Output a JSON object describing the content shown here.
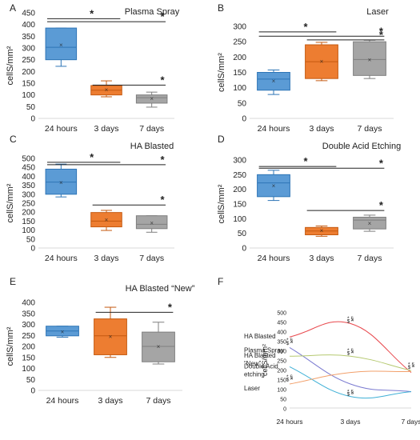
{
  "figure": {
    "panel_letters": [
      "A",
      "B",
      "C",
      "D",
      "E",
      "F"
    ]
  },
  "colors": {
    "blue": "#5b9bd5",
    "blue_edge": "#2e75b6",
    "orange": "#ed7d31",
    "orange_edge": "#c55a11",
    "gray": "#a5a5a5",
    "gray_edge": "#7f7f7f",
    "axis": "#d9d9d9",
    "sig": "#222222"
  },
  "chart_data": [
    {
      "type": "box",
      "panel": "A",
      "title": "Plasma Spray",
      "ylabel": "cellS/mm²",
      "categories": [
        "24 hours",
        "3 days",
        "7 days"
      ],
      "ylim": [
        0,
        450
      ],
      "yticks": [
        0,
        50,
        100,
        150,
        200,
        250,
        300,
        350,
        400,
        450
      ],
      "boxes": [
        {
          "min": 222,
          "q1": 250,
          "median": 303,
          "q3": 385,
          "max": 385,
          "mean": 314
        },
        {
          "min": 92,
          "q1": 100,
          "median": 120,
          "q3": 140,
          "max": 160,
          "mean": 123
        },
        {
          "min": 48,
          "q1": 65,
          "median": 88,
          "q3": 100,
          "max": 112,
          "mean": 85
        }
      ],
      "significance": [
        {
          "from": 0,
          "to": 1,
          "label": "*",
          "y": 425
        },
        {
          "from": 0,
          "to": 2,
          "label": "*",
          "y": 412
        },
        {
          "from": 1,
          "to": 2,
          "label": "*",
          "y": 142
        }
      ]
    },
    {
      "type": "box",
      "panel": "B",
      "title": "Laser",
      "ylabel": "cellS/mm²",
      "categories": [
        "24 hours",
        "3 days",
        "7 days"
      ],
      "ylim": [
        0,
        300
      ],
      "yticks": [
        0,
        50,
        100,
        150,
        200,
        250,
        300
      ],
      "boxes": [
        {
          "min": 78,
          "q1": 92,
          "median": 128,
          "q3": 150,
          "max": 158,
          "mean": 122
        },
        {
          "min": 123,
          "q1": 130,
          "median": 185,
          "q3": 240,
          "max": 248,
          "mean": 186
        },
        {
          "min": 130,
          "q1": 140,
          "median": 192,
          "q3": 250,
          "max": 255,
          "mean": 192
        }
      ],
      "significance": [
        {
          "from": 0,
          "to": 1,
          "label": "*",
          "y": 282
        },
        {
          "from": 0,
          "to": 2,
          "label": "*",
          "y": 268
        },
        {
          "from": 1,
          "to": 2,
          "label": "*",
          "y": 256
        }
      ]
    },
    {
      "type": "box",
      "panel": "C",
      "title": "HA Blasted",
      "ylabel": "cellS/mm²",
      "categories": [
        "24 hours",
        "3 days",
        "7 days"
      ],
      "ylim": [
        0,
        500
      ],
      "yticks": [
        0,
        50,
        100,
        150,
        200,
        250,
        300,
        350,
        400,
        450,
        500
      ],
      "boxes": [
        {
          "min": 285,
          "q1": 300,
          "median": 368,
          "q3": 440,
          "max": 468,
          "mean": 365
        },
        {
          "min": 98,
          "q1": 118,
          "median": 150,
          "q3": 198,
          "max": 210,
          "mean": 158
        },
        {
          "min": 88,
          "q1": 108,
          "median": 132,
          "q3": 180,
          "max": 180,
          "mean": 140
        }
      ],
      "significance": [
        {
          "from": 0,
          "to": 1,
          "label": "*",
          "y": 478
        },
        {
          "from": 0,
          "to": 2,
          "label": "*",
          "y": 465
        },
        {
          "from": 1,
          "to": 2,
          "label": "*",
          "y": 240
        }
      ]
    },
    {
      "type": "box",
      "panel": "D",
      "title": "Double Acid Etching",
      "ylabel": "cellS/mm²",
      "categories": [
        "24 hours",
        "3 days",
        "7 days"
      ],
      "ylim": [
        0,
        300
      ],
      "yticks": [
        0,
        50,
        100,
        150,
        200,
        250,
        300
      ],
      "boxes": [
        {
          "min": 162,
          "q1": 175,
          "median": 222,
          "q3": 250,
          "max": 265,
          "mean": 213
        },
        {
          "min": 40,
          "q1": 45,
          "median": 58,
          "q3": 70,
          "max": 75,
          "mean": 60
        },
        {
          "min": 57,
          "q1": 65,
          "median": 95,
          "q3": 105,
          "max": 112,
          "mean": 85
        }
      ],
      "significance": [
        {
          "from": 0,
          "to": 1,
          "label": "*",
          "y": 278
        },
        {
          "from": 0,
          "to": 2,
          "label": "*",
          "y": 272
        },
        {
          "from": 1,
          "to": 2,
          "label": "*",
          "y": 128
        }
      ]
    },
    {
      "type": "box",
      "panel": "E",
      "title": "HA Blasted “New”",
      "ylabel": "cellS/mm²",
      "categories": [
        "24 hours",
        "3 days",
        "7 days"
      ],
      "ylim": [
        0,
        400
      ],
      "yticks": [
        0,
        50,
        100,
        150,
        200,
        250,
        300,
        350,
        400
      ],
      "boxes": [
        {
          "min": 242,
          "q1": 248,
          "median": 270,
          "q3": 292,
          "max": 292,
          "mean": 268
        },
        {
          "min": 150,
          "q1": 162,
          "median": 248,
          "q3": 325,
          "max": 378,
          "mean": 245
        },
        {
          "min": 120,
          "q1": 130,
          "median": 200,
          "q3": 265,
          "max": 310,
          "mean": 200
        }
      ],
      "significance": [
        {
          "from": 1,
          "to": 2,
          "label": "*",
          "y": 355
        }
      ]
    },
    {
      "type": "line",
      "panel": "F",
      "ylabel": "cellS/mm²",
      "categories": [
        "24 hours",
        "3 days",
        "7 days"
      ],
      "ylim": [
        0,
        500
      ],
      "yticks": [
        0,
        50,
        100,
        150,
        200,
        250,
        300,
        350,
        400,
        450,
        500
      ],
      "series": [
        {
          "name": "HA Blasted",
          "values": [
            370,
            440,
            185
          ],
          "color": "#e8474c"
        },
        {
          "name": "Plasma Spray",
          "values": [
            315,
            125,
            85
          ],
          "color": "#7a7ad0"
        },
        {
          "name": "HA Blasted “New”",
          "values": [
            270,
            270,
            195
          ],
          "color": "#b5c970"
        },
        {
          "name": "Double Acid etching",
          "values": [
            215,
            60,
            85
          ],
          "color": "#3fb0d6"
        },
        {
          "name": "Laser",
          "values": [
            125,
            185,
            190
          ],
          "color": "#f2a06b"
        }
      ],
      "annotations": [
        {
          "category": 0,
          "y": 345,
          "text": "* §"
        },
        {
          "category": 0,
          "y": 330,
          "text": "$ ^"
        },
        {
          "category": 0,
          "y": 155,
          "text": "* §"
        },
        {
          "category": 0,
          "y": 140,
          "text": "$ ^"
        },
        {
          "category": 1,
          "y": 458,
          "text": "* §"
        },
        {
          "category": 1,
          "y": 444,
          "text": "$ ^"
        },
        {
          "category": 1,
          "y": 292,
          "text": "* §"
        },
        {
          "category": 1,
          "y": 278,
          "text": "$ ^"
        },
        {
          "category": 1,
          "y": 78,
          "text": "* §"
        },
        {
          "category": 1,
          "y": 64,
          "text": "$ ^"
        },
        {
          "category": 2,
          "y": 218,
          "text": "* §"
        },
        {
          "category": 2,
          "y": 204,
          "text": "$ ^"
        }
      ]
    }
  ]
}
